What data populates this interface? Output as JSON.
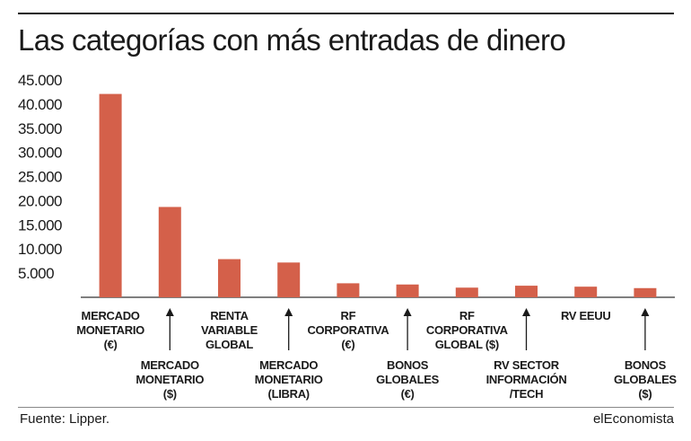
{
  "title": "Las categorías con más entradas de dinero",
  "source": "Fuente: Lipper.",
  "brand": "elEconomista",
  "colors": {
    "bar": "#d4604a",
    "text": "#1a1a1a"
  },
  "chart_data": {
    "type": "bar",
    "title": "Las categorías con más entradas de dinero",
    "xlabel": "",
    "ylabel": "",
    "ylim": [
      0,
      45000
    ],
    "yticks": [
      5000,
      10000,
      15000,
      20000,
      25000,
      30000,
      35000,
      40000,
      45000
    ],
    "ytick_labels": [
      "5.000",
      "10.000",
      "15.000",
      "20.000",
      "25.000",
      "30.000",
      "35.000",
      "40.000",
      "45.000"
    ],
    "grid": false,
    "categories": [
      {
        "label": [
          "MERCADO",
          "MONETARIO",
          "(€)"
        ],
        "position": "top"
      },
      {
        "label": [
          "MERCADO",
          "MONETARIO",
          "($)"
        ],
        "position": "bottom"
      },
      {
        "label": [
          "RENTA",
          "VARIABLE",
          "GLOBAL"
        ],
        "position": "top"
      },
      {
        "label": [
          "MERCADO",
          "MONETARIO",
          "(LIBRA)"
        ],
        "position": "bottom"
      },
      {
        "label": [
          "RF",
          "CORPORATIVA",
          "(€)"
        ],
        "position": "top"
      },
      {
        "label": [
          "BONOS",
          "GLOBALES",
          "(€)"
        ],
        "position": "bottom"
      },
      {
        "label": [
          "RF",
          "CORPORATIVA",
          "GLOBAL ($)"
        ],
        "position": "top"
      },
      {
        "label": [
          "RV SECTOR",
          "INFORMACIÓN",
          "/TECH"
        ],
        "position": "bottom"
      },
      {
        "label": [
          "RV EEUU"
        ],
        "position": "top"
      },
      {
        "label": [
          "BONOS",
          "GLOBALES",
          "($)"
        ],
        "position": "bottom"
      }
    ],
    "values": [
      42100,
      18700,
      7900,
      7200,
      2900,
      2650,
      2000,
      2400,
      2200,
      1900
    ]
  }
}
